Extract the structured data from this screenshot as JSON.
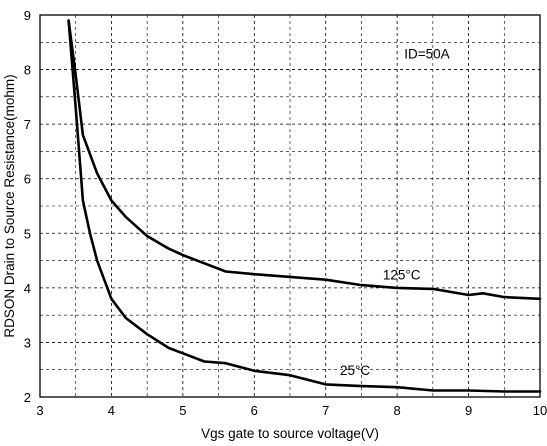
{
  "chart_data": {
    "type": "line",
    "title": "",
    "xlabel": "Vgs gate to source voltage(V)",
    "ylabel": "RDSON Drain to Source Resistance(mohm)",
    "xlim": [
      3,
      10
    ],
    "ylim": [
      2,
      9
    ],
    "xticks": [
      "3",
      "4",
      "5",
      "6",
      "7",
      "8",
      "9",
      "10"
    ],
    "yticks": [
      "2",
      "3",
      "4",
      "5",
      "6",
      "7",
      "8",
      "9"
    ],
    "grid": true,
    "annotations": [
      {
        "text": "ID=50A",
        "x": 8.1,
        "y": 8.2
      },
      {
        "text": "125°C",
        "x": 7.8,
        "y": 4.15
      },
      {
        "text": "25°C",
        "x": 7.2,
        "y": 2.4
      }
    ],
    "series": [
      {
        "label": "125°C",
        "x": [
          3.4,
          3.5,
          3.6,
          3.8,
          4.0,
          4.2,
          4.5,
          4.8,
          5.0,
          5.3,
          5.6,
          6.0,
          6.5,
          7.0,
          7.5,
          8.0,
          8.5,
          9.0,
          9.2,
          9.5,
          10.0
        ],
        "y": [
          8.9,
          7.9,
          6.8,
          6.1,
          5.6,
          5.3,
          4.95,
          4.72,
          4.6,
          4.45,
          4.3,
          4.25,
          4.2,
          4.15,
          4.05,
          4.0,
          3.98,
          3.87,
          3.9,
          3.83,
          3.8
        ]
      },
      {
        "label": "25°C",
        "x": [
          3.4,
          3.5,
          3.6,
          3.7,
          3.8,
          4.0,
          4.2,
          4.5,
          4.8,
          5.0,
          5.3,
          5.6,
          6.0,
          6.5,
          7.0,
          7.5,
          8.0,
          8.5,
          9.0,
          9.5,
          10.0
        ],
        "y": [
          8.9,
          7.3,
          5.6,
          5.0,
          4.5,
          3.8,
          3.45,
          3.15,
          2.9,
          2.8,
          2.65,
          2.62,
          2.48,
          2.4,
          2.23,
          2.2,
          2.18,
          2.12,
          2.12,
          2.1,
          2.1
        ]
      }
    ]
  }
}
